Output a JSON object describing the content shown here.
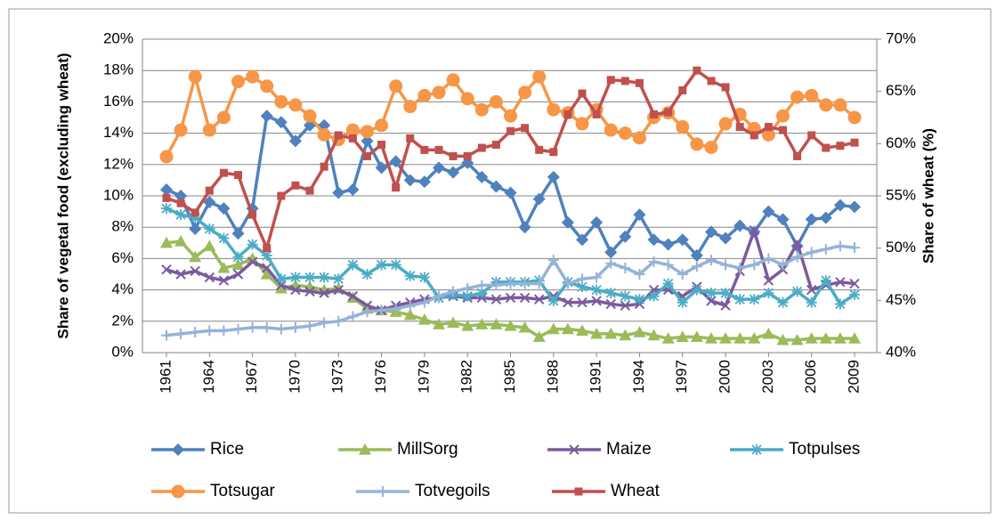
{
  "chart_data": {
    "type": "line",
    "ylabel": "Share of vegetal food (excluding wheat)",
    "y2label": "Share of wheat (%)",
    "categories": [
      "1961",
      null,
      null,
      "1964",
      null,
      null,
      "1967",
      null,
      null,
      "1970",
      null,
      null,
      "1973",
      null,
      null,
      "1976",
      null,
      null,
      "1979",
      null,
      null,
      "1982",
      null,
      null,
      "1985",
      null,
      null,
      "1988",
      null,
      null,
      "1991",
      null,
      null,
      "1994",
      null,
      null,
      "1997",
      null,
      null,
      "2000",
      null,
      null,
      "2003",
      null,
      null,
      "2006",
      null,
      null,
      "2009"
    ],
    "ylim": [
      0,
      20
    ],
    "yticks": [
      {
        "value": 0,
        "label": "0%"
      },
      {
        "value": 2,
        "label": "2%"
      },
      {
        "value": 4,
        "label": "4%"
      },
      {
        "value": 6,
        "label": "6%"
      },
      {
        "value": 8,
        "label": "8%"
      },
      {
        "value": 10,
        "label": "10%"
      },
      {
        "value": 12,
        "label": "12%"
      },
      {
        "value": 14,
        "label": "14%"
      },
      {
        "value": 16,
        "label": "16%"
      },
      {
        "value": 18,
        "label": "18%"
      },
      {
        "value": 20,
        "label": "20%"
      }
    ],
    "y2lim": [
      40,
      70
    ],
    "y2ticks": [
      {
        "value": 40,
        "label": "40%"
      },
      {
        "value": 45,
        "label": "45%"
      },
      {
        "value": 50,
        "label": "50%"
      },
      {
        "value": 55,
        "label": "55%"
      },
      {
        "value": 60,
        "label": "60%"
      },
      {
        "value": 65,
        "label": "65%"
      },
      {
        "value": 70,
        "label": "70%"
      }
    ],
    "grid": true,
    "legend": "bottom",
    "series": [
      {
        "name": "Rice",
        "color": "#4f81bd",
        "marker": "diamond",
        "values": [
          10.4,
          10.0,
          7.9,
          9.6,
          9.2,
          7.6,
          9.2,
          15.1,
          14.7,
          13.5,
          14.5,
          14.5,
          10.2,
          10.4,
          13.5,
          11.8,
          12.2,
          11.0,
          10.9,
          11.8,
          11.5,
          12.1,
          11.2,
          10.6,
          10.2,
          8.0,
          9.8,
          11.2,
          8.3,
          7.2,
          8.3,
          6.4,
          7.4,
          8.8,
          7.2,
          6.9,
          7.2,
          6.2,
          7.7,
          7.3,
          8.1,
          7.7,
          9.0,
          8.5,
          6.8,
          8.5,
          8.6,
          9.4,
          9.3
        ]
      },
      {
        "name": "MillSorg",
        "color": "#9bbb59",
        "marker": "triangle",
        "values": [
          7.0,
          7.1,
          6.1,
          6.8,
          5.4,
          5.6,
          6.0,
          5.0,
          4.1,
          4.3,
          4.2,
          4.0,
          4.1,
          3.5,
          2.8,
          2.7,
          2.6,
          2.4,
          2.1,
          1.8,
          1.9,
          1.7,
          1.8,
          1.8,
          1.7,
          1.6,
          1.0,
          1.5,
          1.5,
          1.4,
          1.2,
          1.2,
          1.1,
          1.3,
          1.1,
          0.9,
          1.0,
          1.0,
          0.9,
          0.9,
          0.9,
          0.9,
          1.2,
          0.8,
          0.8,
          0.9,
          0.9,
          0.9,
          0.9
        ]
      },
      {
        "name": "Maize",
        "color": "#7b5a9e",
        "marker": "x",
        "values": [
          5.3,
          5.0,
          5.2,
          4.8,
          4.6,
          5.0,
          5.8,
          5.4,
          4.3,
          4.0,
          3.9,
          3.8,
          4.0,
          3.6,
          3.0,
          2.7,
          3.0,
          3.2,
          3.4,
          3.5,
          3.6,
          3.5,
          3.5,
          3.4,
          3.5,
          3.5,
          3.4,
          3.6,
          3.2,
          3.2,
          3.3,
          3.1,
          3.0,
          3.1,
          4.0,
          4.0,
          3.6,
          4.2,
          3.3,
          3.0,
          5.2,
          7.8,
          4.6,
          5.3,
          7.0,
          4.0,
          4.3,
          4.5,
          4.4
        ]
      },
      {
        "name": "Totpulses",
        "color": "#4bacc6",
        "marker": "star",
        "values": [
          9.2,
          8.8,
          8.6,
          7.9,
          7.3,
          6.1,
          6.9,
          6.2,
          4.7,
          4.8,
          4.8,
          4.8,
          4.7,
          5.6,
          5.0,
          5.6,
          5.6,
          4.9,
          4.8,
          3.5,
          3.7,
          3.6,
          3.8,
          4.5,
          4.5,
          4.5,
          4.6,
          3.3,
          4.5,
          4.2,
          4.0,
          3.8,
          3.6,
          3.4,
          3.6,
          4.4,
          3.2,
          4.0,
          3.8,
          3.8,
          3.4,
          3.4,
          3.8,
          3.2,
          3.9,
          3.2,
          4.6,
          3.1,
          3.7
        ]
      },
      {
        "name": "Totsugar",
        "color": "#f79646",
        "marker": "circle",
        "values": [
          12.5,
          14.2,
          17.6,
          14.2,
          15.0,
          17.3,
          17.6,
          17.0,
          16.0,
          15.8,
          15.1,
          13.9,
          13.6,
          14.2,
          14.1,
          14.5,
          17.0,
          15.7,
          16.4,
          16.6,
          17.4,
          16.2,
          15.5,
          16.0,
          15.1,
          16.6,
          17.6,
          15.5,
          15.3,
          14.6,
          15.5,
          14.2,
          14.0,
          13.7,
          15.0,
          15.3,
          14.4,
          13.3,
          13.1,
          14.6,
          15.2,
          14.3,
          13.9,
          15.1,
          16.3,
          16.4,
          15.8,
          15.8,
          15.0
        ]
      },
      {
        "name": "Totvegoils",
        "color": "#95b3d7",
        "marker": "plus",
        "values": [
          1.1,
          1.2,
          1.3,
          1.4,
          1.4,
          1.5,
          1.6,
          1.6,
          1.5,
          1.6,
          1.7,
          1.9,
          2.0,
          2.3,
          2.6,
          2.7,
          2.8,
          3.0,
          3.2,
          3.6,
          3.9,
          4.1,
          4.3,
          4.3,
          4.4,
          4.4,
          4.4,
          5.9,
          4.4,
          4.7,
          4.8,
          5.7,
          5.4,
          5.0,
          5.8,
          5.6,
          5.0,
          5.5,
          5.9,
          5.6,
          5.4,
          5.6,
          6.0,
          5.6,
          6.1,
          6.4,
          6.6,
          6.8,
          6.7
        ]
      },
      {
        "name": "Wheat",
        "color": "#c0504d",
        "marker": "square",
        "axis": "y2",
        "values": [
          54.8,
          54.3,
          53.4,
          55.5,
          57.2,
          57.0,
          53.2,
          50.0,
          55.0,
          56.0,
          55.5,
          57.8,
          60.8,
          60.5,
          58.8,
          59.9,
          55.8,
          60.5,
          59.4,
          59.4,
          58.8,
          58.8,
          59.6,
          59.9,
          61.2,
          61.5,
          59.4,
          59.2,
          62.8,
          64.8,
          62.8,
          66.1,
          66.0,
          65.8,
          62.8,
          63.0,
          65.1,
          67.0,
          66.0,
          65.4,
          61.6,
          60.8,
          61.6,
          61.3,
          58.8,
          60.8,
          59.6,
          59.8,
          60.1
        ]
      }
    ]
  }
}
